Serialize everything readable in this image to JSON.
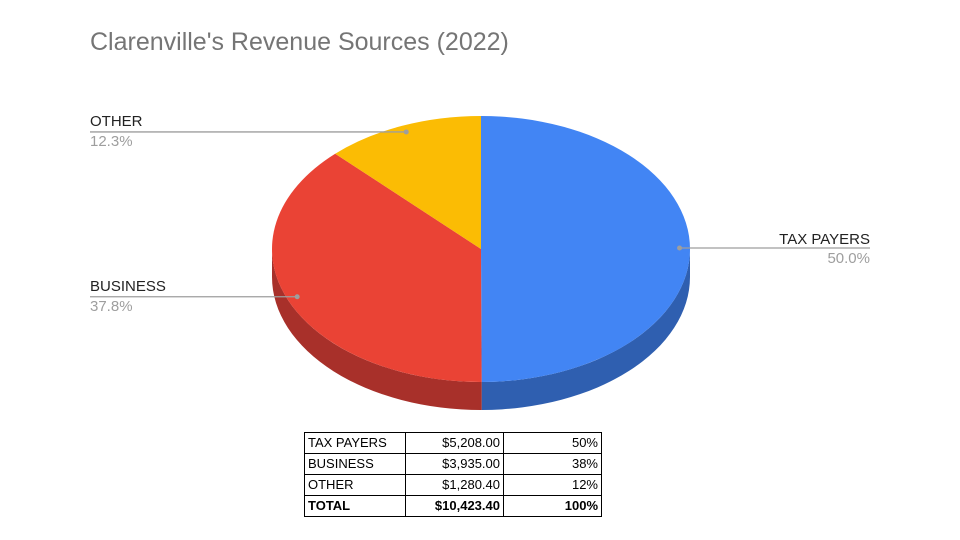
{
  "chart_data": {
    "type": "pie",
    "title": "Clarenville's Revenue Sources (2022)",
    "style": "3d",
    "slices": [
      {
        "label": "TAX PAYERS",
        "value": 50.0,
        "percent_label": "50.0%",
        "color": "#4285f4",
        "side_color": "#2f5fb0"
      },
      {
        "label": "BUSINESS",
        "value": 37.8,
        "percent_label": "37.8%",
        "color": "#ea4335",
        "side_color": "#a8302a"
      },
      {
        "label": "OTHER",
        "value": 12.3,
        "percent_label": "12.3%",
        "color": "#fbbc04",
        "side_color": "#b38703"
      }
    ]
  },
  "table": {
    "rows": [
      {
        "name": "TAX PAYERS",
        "amount": "$5,208.00",
        "percent": "50%"
      },
      {
        "name": "BUSINESS",
        "amount": "$3,935.00",
        "percent": "38%"
      },
      {
        "name": "OTHER",
        "amount": "$1,280.40",
        "percent": "12%"
      }
    ],
    "total": {
      "name": "TOTAL",
      "amount": "$10,423.40",
      "percent": "100%"
    }
  }
}
